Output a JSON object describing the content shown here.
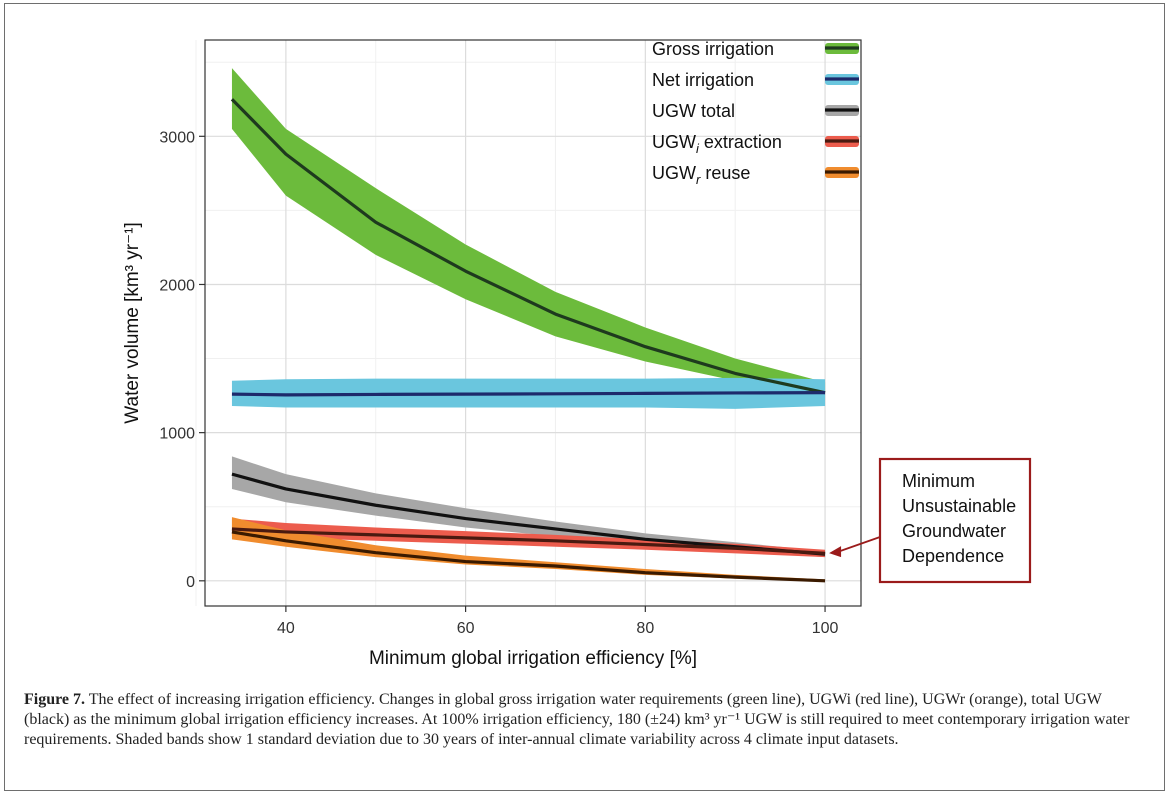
{
  "figure": {
    "label": "Figure 7.",
    "caption": "The effect of increasing irrigation efficiency. Changes in global gross irrigation water requirements (green line), UGWi (red line), UGWr (orange), total UGW (black) as the minimum global irrigation efficiency increases. At 100% irrigation efficiency, 180 (±24) km³ yr⁻¹ UGW is still required to meet contemporary irrigation water requirements. Shaded bands show 1 standard deviation due to 30 years of inter-annual climate variability across 4 climate input datasets."
  },
  "chart_data": {
    "type": "line",
    "xlabel": "Minimum global irrigation efficiency [%]",
    "ylabel": "Water volume [km³ yr⁻¹]",
    "xlim": [
      31,
      104
    ],
    "ylim": [
      -170,
      3650
    ],
    "xticks": [
      40,
      60,
      80,
      100
    ],
    "yticks": [
      0,
      1000,
      2000,
      3000
    ],
    "grid": true,
    "legend_position": "top-right",
    "x": [
      34,
      40,
      50,
      60,
      70,
      80,
      90,
      100
    ],
    "series": [
      {
        "name": "Gross irrigation",
        "color": "#1e3a1e",
        "band_color": "#6cbb3c",
        "values": [
          3250,
          2880,
          2420,
          2090,
          1800,
          1580,
          1400,
          1270
        ],
        "lower": [
          3050,
          2600,
          2200,
          1900,
          1650,
          1480,
          1350,
          1270
        ],
        "upper": [
          3460,
          3050,
          2650,
          2270,
          1950,
          1710,
          1500,
          1340
        ]
      },
      {
        "name": "Net irrigation",
        "color": "#1d2a6b",
        "band_color": "#6ac6de",
        "values": [
          1260,
          1255,
          1258,
          1260,
          1262,
          1265,
          1268,
          1270
        ],
        "lower": [
          1180,
          1170,
          1170,
          1170,
          1170,
          1170,
          1160,
          1180
        ],
        "upper": [
          1350,
          1360,
          1365,
          1365,
          1365,
          1365,
          1370,
          1360
        ]
      },
      {
        "name": "UGW total",
        "color": "#111111",
        "band_color": "#a7a7a7",
        "values": [
          720,
          620,
          510,
          420,
          350,
          280,
          230,
          180
        ],
        "lower": [
          620,
          530,
          440,
          360,
          300,
          240,
          200,
          160
        ],
        "upper": [
          840,
          720,
          590,
          490,
          400,
          320,
          260,
          200
        ]
      },
      {
        "name": "UGWi extraction",
        "color": "#4a1a10",
        "band_color": "#ec5c4d",
        "values": [
          350,
          330,
          310,
          290,
          270,
          245,
          220,
          185
        ],
        "lower": [
          300,
          290,
          270,
          250,
          230,
          210,
          185,
          160
        ],
        "upper": [
          420,
          390,
          360,
          335,
          310,
          280,
          250,
          210
        ]
      },
      {
        "name": "UGWr reuse",
        "color": "#3a1a00",
        "band_color": "#f08c2e",
        "values": [
          330,
          270,
          190,
          130,
          100,
          55,
          25,
          0
        ],
        "lower": [
          280,
          230,
          160,
          110,
          80,
          40,
          15,
          0
        ],
        "upper": [
          430,
          340,
          240,
          170,
          125,
          80,
          40,
          10
        ]
      }
    ],
    "legend": [
      {
        "base": "Gross irrigation",
        "sub": ""
      },
      {
        "base": "Net irrigation",
        "sub": ""
      },
      {
        "base": "UGW total",
        "sub": ""
      },
      {
        "base": "UGW",
        "sub": "i",
        "rest": " extraction"
      },
      {
        "base": "UGW",
        "sub": "r",
        "rest": " reuse"
      }
    ],
    "annotation": {
      "lines": [
        "Minimum",
        "Unsustainable",
        "Groundwater",
        "Dependence"
      ],
      "border_color": "#9b1b1b",
      "arrow_x": 100,
      "arrow_y": 180
    }
  }
}
